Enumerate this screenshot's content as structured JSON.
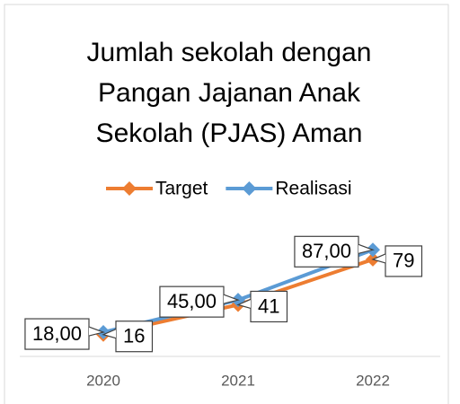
{
  "chart_data": {
    "type": "line",
    "title": [
      "Jumlah sekolah dengan",
      "Pangan Jajanan Anak",
      "Sekolah (PJAS) Aman"
    ],
    "categories": [
      "2020",
      "2021",
      "2022"
    ],
    "series": [
      {
        "name": "Target",
        "color": "#ed7d31",
        "values": [
          16,
          41,
          79
        ]
      },
      {
        "name": "Realisasi",
        "color": "#5b9bd5",
        "values": [
          18,
          45,
          87
        ],
        "value_labels": [
          "18,00",
          "45,00",
          "87,00"
        ]
      }
    ],
    "ylim": [
      0,
      100
    ],
    "legend": "top"
  }
}
